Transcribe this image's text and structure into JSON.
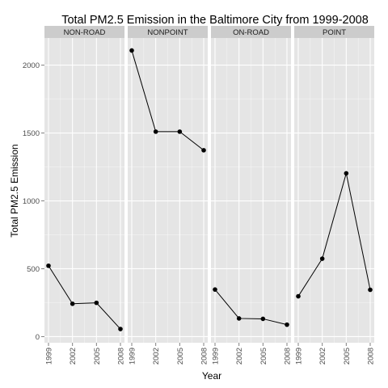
{
  "chart_data": {
    "type": "line",
    "title": "Total PM2.5 Emission in the Baltimore City from 1999-2008",
    "xlabel": "Year",
    "ylabel": "Total PM2.5 Emission",
    "x": [
      1999,
      2002,
      2005,
      2008
    ],
    "x_tick_labels": [
      "1999",
      "2002",
      "2005",
      "2008"
    ],
    "y_ticks": [
      0,
      500,
      1000,
      1500,
      2000
    ],
    "y_tick_labels": [
      "0",
      "500",
      "1000",
      "1500",
      "2000"
    ],
    "ylim": [
      -45,
      2200
    ],
    "grid": true,
    "facets": [
      {
        "name": "NON-ROAD",
        "values": [
          522,
          242,
          249,
          56
        ]
      },
      {
        "name": "NONPOINT",
        "values": [
          2108,
          1510,
          1510,
          1373
        ]
      },
      {
        "name": "ON-ROAD",
        "values": [
          347,
          134,
          131,
          88
        ]
      },
      {
        "name": "POINT",
        "values": [
          297,
          574,
          1203,
          345
        ]
      }
    ],
    "colors": {
      "panel_background": "#e5e5e5",
      "grid": "#ffffff",
      "strip_background": "#cccccc",
      "line": "#000000",
      "point": "#000000"
    }
  }
}
